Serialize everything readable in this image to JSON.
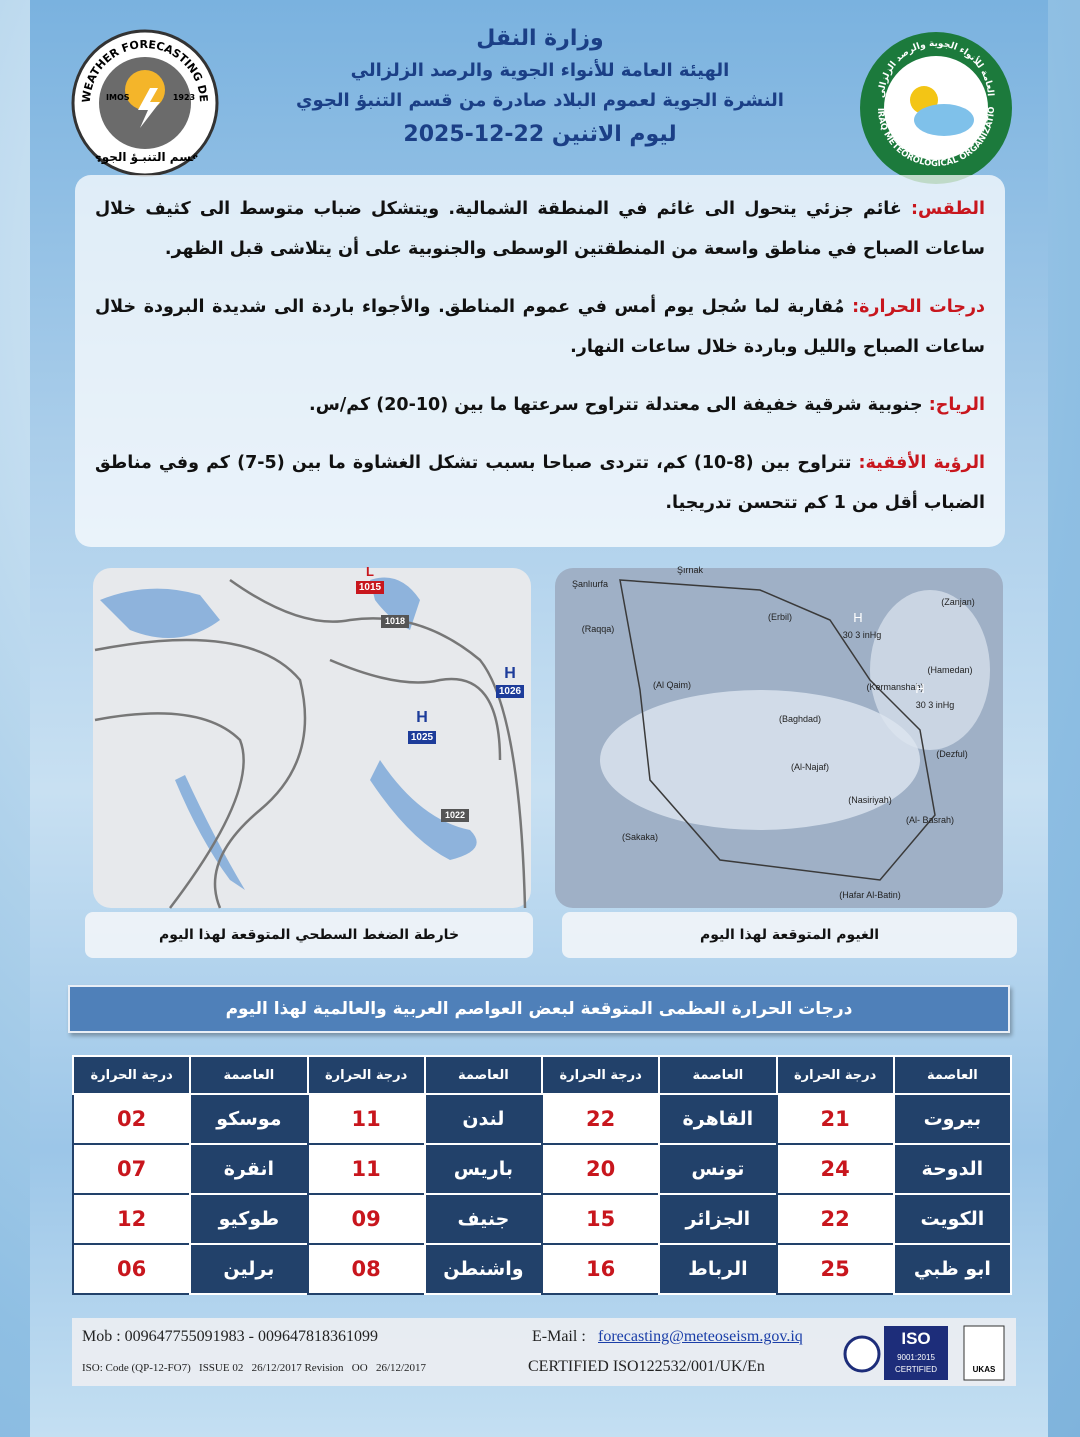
{
  "header": {
    "ministry": "وزارة النقل",
    "organization": "الهيئة العامة للأنواء الجوية والرصد الزلزالي",
    "bulletin": "النشرة الجوية لعموم البلاد صادرة من قسم التنبؤ الجوي",
    "date": "ليوم الاثنين 22-12-2025"
  },
  "logos": {
    "left": {
      "name": "WEATHER FORECASTING DEPT.",
      "abbr": "IMOS",
      "year": "1923",
      "arabic": "قسم التنبـؤ الجوي"
    },
    "right": {
      "arabic": "الهيئة العامة للأنواء الجوية والرصد الزلزالي",
      "english": "IRAQ METEOROLOGICAL ORGANIZATION & SEISMOLOGY"
    }
  },
  "forecast": [
    {
      "label": "الطقس:",
      "text": " غائم جزئي يتحول الى غائم في المنطقة الشمالية. ويتشكل ضباب متوسط الى كثيف خلال ساعات الصباح في مناطق واسعة من المنطقتين الوسطى والجنوبية على أن يتلاشى قبل الظهر."
    },
    {
      "label": "درجات الحرارة:",
      "text": " مُقاربة لما سُجل يوم أمس في عموم المناطق. والأجواء باردة الى شديدة البرودة خلال ساعات الصباح والليل وباردة خلال ساعات النهار."
    },
    {
      "label": "الرياح:",
      "text": " جنوبية شرقية خفيفة الى معتدلة تتراوح سرعتها ما بين (10-20) كم/س."
    },
    {
      "label": "الرؤية الأفقية:",
      "text": " تتراوح بين (8-10) كم، تتردى صباحا بسبب تشكل الغشاوة ما بين (5-7) كم وفي مناطق الضباب أقل من 1 كم تتحسن تدريجيا."
    }
  ],
  "maps": {
    "pressure": {
      "caption": "خارطة الضغط السطحي المتوقعة لهذا اليوم",
      "labels": [
        "L",
        "1015",
        "1018",
        "H",
        "1026",
        "H",
        "1025",
        "1022"
      ]
    },
    "clouds": {
      "caption": "الغيوم المتوقعة لهذا اليوم",
      "labels": [
        "Şırnak",
        "Şanlıurfa",
        "(Erbil)",
        "(Zanjan)",
        "(Raqqa)",
        "H",
        "30 3 inHg",
        "(Hamedan)",
        "(Kermanshah)",
        "(Al Qaim)",
        "H",
        "30 3 inHg",
        "(Baghdad)",
        "(Al-Najaf)",
        "(Dezful)",
        "(Nasiriyah)",
        "(Al- Basrah)",
        "(Sakaka)",
        "(Hafar Al-Batin)"
      ]
    }
  },
  "table": {
    "title": "درجات الحرارة العظمى المتوقعة لبعض العواصم العربية والعالمية لهذا اليوم",
    "header": [
      "العاصمة",
      "درجة الحرارة",
      "العاصمة",
      "درجة الحرارة",
      "العاصمة",
      "درجة الحرارة",
      "العاصمة",
      "درجة الحرارة"
    ],
    "rows": [
      [
        "بيروت",
        "21",
        "القاهرة",
        "22",
        "لندن",
        "11",
        "موسكو",
        "02"
      ],
      [
        "الدوحة",
        "24",
        "تونس",
        "20",
        "باريس",
        "11",
        "انقرة",
        "07"
      ],
      [
        "الكويت",
        "22",
        "الجزائر",
        "15",
        "جنيف",
        "09",
        "طوكيو",
        "12"
      ],
      [
        "ابو ظبي",
        "25",
        "الرباط",
        "16",
        "واشنطن",
        "08",
        "برلين",
        "06"
      ]
    ]
  },
  "footer": {
    "mobile": "Mob : 009647755091983 - 009647818361099",
    "email_label": "E-Mail : ",
    "email": "forecasting@meteoseism.gov.iq",
    "iso_code": "ISO: Code (QP-12-FO7)   ISSUE 02   26/12/2017 Revision   OO   26/12/2017",
    "certified": "CERTIFIED ISO122532/001/UK/En",
    "badges": [
      "ISO",
      "9001:2015",
      "CERTIFIED",
      "UKAS"
    ]
  }
}
